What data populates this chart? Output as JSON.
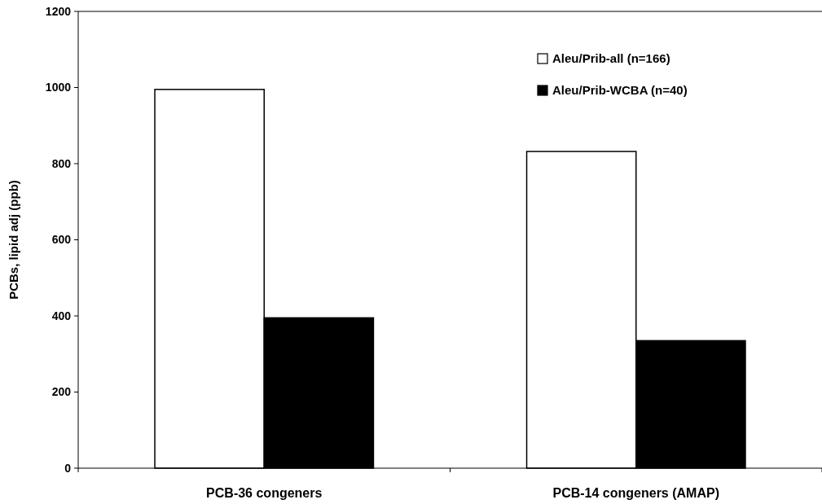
{
  "chart_data": {
    "type": "bar",
    "ylabel": "PCBs, lipid adj (ppb)",
    "categories": [
      "PCB-36 congeners",
      "PCB-14 congeners (AMAP)"
    ],
    "series": [
      {
        "name": "Aleu/Prib-all (n=166)",
        "color": "#ffffff",
        "values": [
          995,
          832
        ]
      },
      {
        "name": "Aleu/Prib-WCBA (n=40)",
        "color": "#000000",
        "values": [
          395,
          335
        ]
      }
    ],
    "ylim": [
      0,
      1200
    ],
    "yticks": [
      0,
      200,
      400,
      600,
      800,
      1000,
      1200
    ],
    "grid": false,
    "legend": "top right"
  }
}
